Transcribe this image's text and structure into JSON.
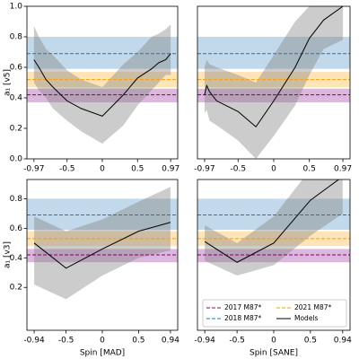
{
  "chart_data": [
    {
      "type": "line",
      "ylabel": "a₁ [v5]",
      "x": [
        -0.97,
        -0.9,
        -0.8,
        -0.7,
        -0.5,
        -0.3,
        0,
        0.3,
        0.5,
        0.7,
        0.8,
        0.9,
        0.97
      ],
      "series": [
        {
          "color": "#000000",
          "values": [
            0.65,
            0.6,
            0.52,
            0.47,
            0.38,
            0.33,
            0.28,
            0.42,
            0.53,
            0.59,
            0.63,
            0.65,
            0.69
          ],
          "high": [
            0.87,
            0.8,
            0.72,
            0.68,
            0.58,
            0.52,
            0.47,
            0.62,
            0.7,
            0.8,
            0.82,
            0.85,
            0.88
          ],
          "low": [
            0.5,
            0.45,
            0.4,
            0.33,
            0.25,
            0.18,
            0.1,
            0.22,
            0.35,
            0.45,
            0.5,
            0.55,
            0.55
          ]
        }
      ],
      "bands": [
        {
          "color": "#800080",
          "center": 0.42,
          "low": 0.37,
          "high": 0.46
        },
        {
          "color": "#ff9f00",
          "center": 0.52,
          "low": 0.47,
          "high": 0.57
        },
        {
          "color": "#1f77b4",
          "center": 0.69,
          "low": 0.59,
          "high": 0.8
        }
      ],
      "xlim": [
        -1.07,
        1.07
      ],
      "xticks": [
        -0.97,
        -0.5,
        0,
        0.5,
        0.97
      ],
      "ylim": [
        0,
        1
      ],
      "yticks": [
        {
          "value": 0,
          "label": "0.0"
        },
        0.2,
        0.4,
        0.6,
        0.8,
        {
          "value": 1,
          "label": "1.0"
        }
      ]
    },
    {
      "type": "line",
      "x": [
        -0.97,
        -0.94,
        -0.9,
        -0.8,
        -0.5,
        -0.25,
        0,
        0.3,
        0.5,
        0.7,
        0.97
      ],
      "series": [
        {
          "color": "#000000",
          "values": [
            0.42,
            0.48,
            0.44,
            0.38,
            0.31,
            0.21,
            0.38,
            0.6,
            0.79,
            0.91,
            1.0
          ],
          "high": [
            0.6,
            0.65,
            0.62,
            0.6,
            0.55,
            0.5,
            0.68,
            0.9,
            1.0,
            1.0,
            1.0
          ],
          "low": [
            0.3,
            0.32,
            0.25,
            0.22,
            0.12,
            0.0,
            0.15,
            0.35,
            0.55,
            0.72,
            0.78
          ]
        }
      ],
      "bands": [
        {
          "color": "#800080",
          "center": 0.42,
          "low": 0.37,
          "high": 0.46
        },
        {
          "color": "#ff9f00",
          "center": 0.52,
          "low": 0.47,
          "high": 0.57
        },
        {
          "color": "#1f77b4",
          "center": 0.69,
          "low": 0.59,
          "high": 0.8
        }
      ],
      "xlim": [
        -1.07,
        1.07
      ],
      "xticks": [
        -0.97,
        -0.5,
        0,
        0.5,
        0.97
      ],
      "ylim": [
        0,
        1
      ]
    },
    {
      "type": "line",
      "ylabel": "a₁ [v3]",
      "xlabel": "Spin [MAD]",
      "x": [
        -0.94,
        -0.5,
        0,
        0.5,
        0.94
      ],
      "series": [
        {
          "color": "#000000",
          "values": [
            0.5,
            0.33,
            0.46,
            0.58,
            0.64
          ],
          "high": [
            0.68,
            0.58,
            0.66,
            0.78,
            0.88
          ],
          "low": [
            0.22,
            0.12,
            0.28,
            0.4,
            0.45
          ]
        }
      ],
      "bands": [
        {
          "color": "#800080",
          "center": 0.42,
          "low": 0.37,
          "high": 0.46
        },
        {
          "color": "#ff9f00",
          "center": 0.53,
          "low": 0.48,
          "high": 0.58
        },
        {
          "color": "#1f77b4",
          "center": 0.69,
          "low": 0.59,
          "high": 0.8
        }
      ],
      "xlim": [
        -1.04,
        1.04
      ],
      "xticks": [
        -0.94,
        -0.5,
        0,
        0.5,
        0.94
      ],
      "ylim": [
        -0.09,
        0.93
      ],
      "yticks": [
        0.2,
        0.4,
        0.6,
        0.8
      ]
    },
    {
      "type": "line",
      "xlabel": "Spin [SANE]",
      "x": [
        -0.94,
        -0.5,
        0,
        0.5,
        0.94
      ],
      "series": [
        {
          "name": "Models",
          "color": "#000000",
          "values": [
            0.51,
            0.37,
            0.5,
            0.79,
            0.95
          ],
          "high": [
            0.62,
            0.5,
            0.68,
            1.0,
            1.0
          ],
          "low": [
            0.38,
            0.28,
            0.35,
            0.55,
            0.7
          ]
        }
      ],
      "bands": [
        {
          "name": "2017 M87*",
          "color": "#800080",
          "center": 0.42,
          "low": 0.37,
          "high": 0.46
        },
        {
          "name": "2021 M87*",
          "color": "#ff9f00",
          "center": 0.53,
          "low": 0.48,
          "high": 0.58
        },
        {
          "name": "2018 M87*",
          "color": "#1f77b4",
          "center": 0.69,
          "low": 0.59,
          "high": 0.8
        }
      ],
      "xlim": [
        -1.04,
        1.04
      ],
      "xticks": [
        -0.94,
        -0.5,
        0,
        0.5,
        0.94
      ],
      "ylim": [
        -0.09,
        0.93
      ],
      "legend": "lower right"
    }
  ]
}
